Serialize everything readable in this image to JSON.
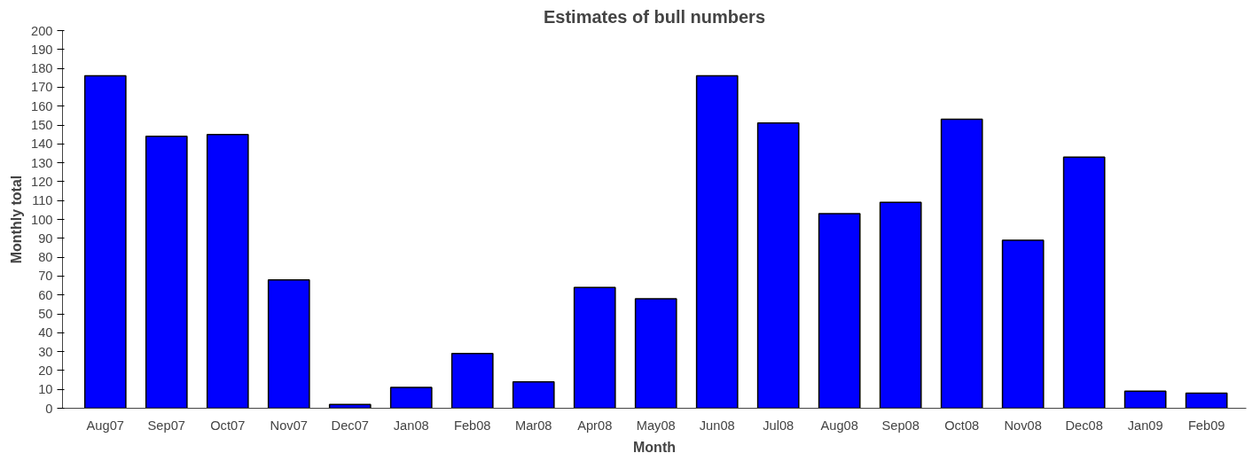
{
  "chart_data": {
    "type": "bar",
    "title": "Estimates of bull numbers",
    "xlabel": "Month",
    "ylabel": "Monthly total",
    "categories": [
      "Aug07",
      "Sep07",
      "Oct07",
      "Nov07",
      "Dec07",
      "Jan08",
      "Feb08",
      "Mar08",
      "Apr08",
      "May08",
      "Jun08",
      "Jul08",
      "Aug08",
      "Sep08",
      "Oct08",
      "Nov08",
      "Dec08",
      "Jan09",
      "Feb09"
    ],
    "values": [
      176,
      144,
      145,
      68,
      2,
      11,
      29,
      14,
      64,
      58,
      176,
      151,
      103,
      109,
      153,
      89,
      133,
      9,
      8
    ],
    "color": "#0000ff",
    "ylim": [
      0,
      200
    ],
    "yticks": [
      0,
      10,
      20,
      30,
      40,
      50,
      60,
      70,
      80,
      90,
      100,
      110,
      120,
      130,
      140,
      150,
      160,
      170,
      180,
      190,
      200
    ],
    "grid": false
  }
}
